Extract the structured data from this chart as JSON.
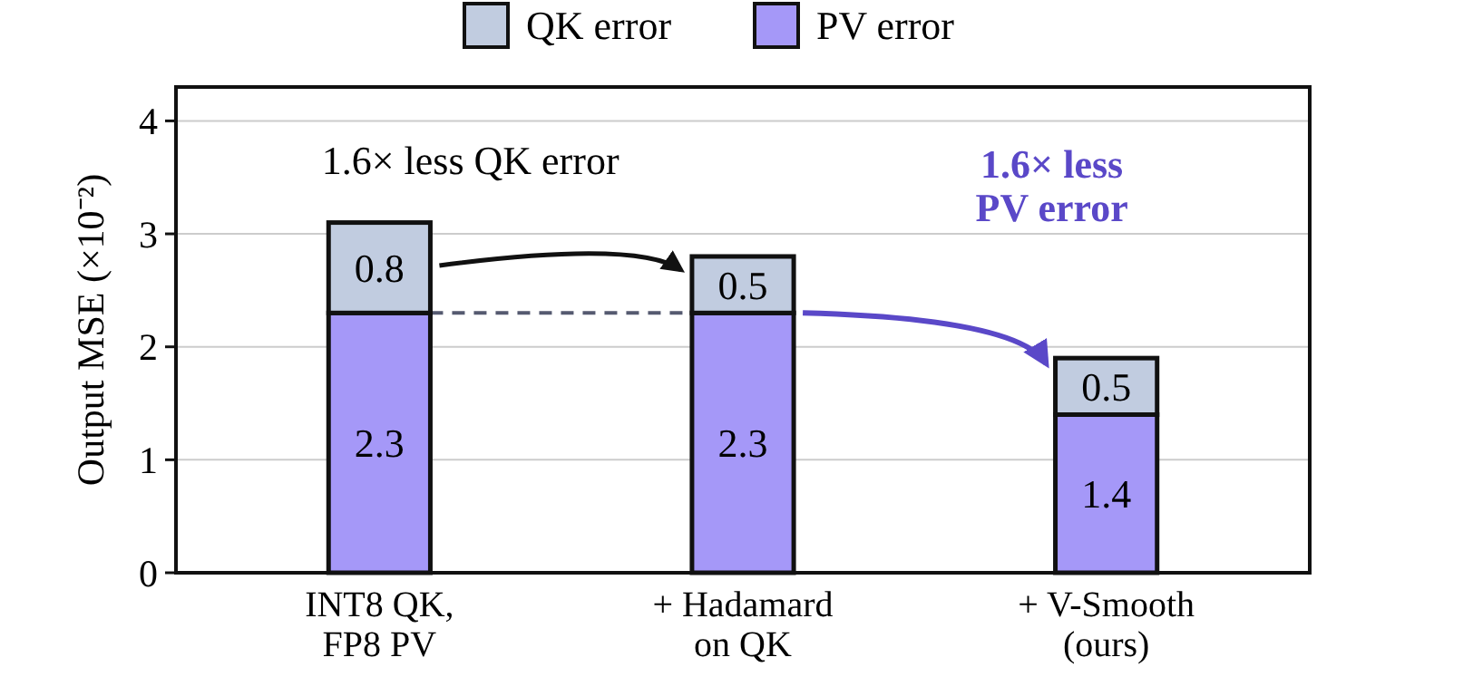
{
  "chart_data": {
    "type": "bar",
    "stacked": true,
    "categories": [
      "INT8 QK,\nFP8 PV",
      "+ Hadamard\non QK",
      "+ V-Smooth\n(ours)"
    ],
    "series": [
      {
        "name": "PV error",
        "color": "#a598f8",
        "values": [
          2.3,
          2.3,
          1.4
        ]
      },
      {
        "name": "QK error",
        "color": "#c1cce0",
        "values": [
          0.8,
          0.5,
          0.5
        ]
      }
    ],
    "ylabel": "Output MSE (×10⁻²)",
    "ylim": [
      0,
      4.3
    ],
    "yticks": [
      0,
      1,
      2,
      3,
      4
    ],
    "grid": "y",
    "legend": "top",
    "data_labels": true,
    "annotations": [
      "1.6× less QK error",
      "1.6× less\nPV error"
    ]
  }
}
